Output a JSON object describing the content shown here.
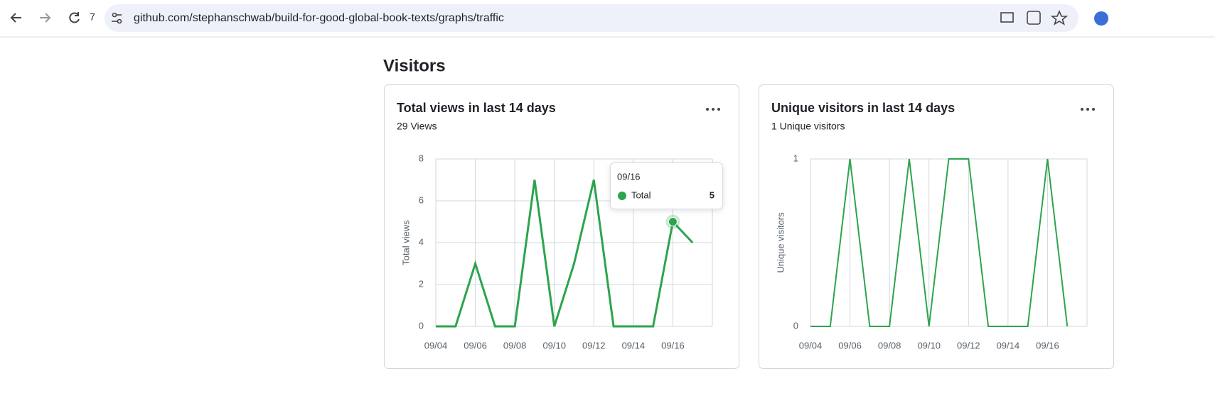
{
  "browser": {
    "tab_count": "7",
    "url": "github.com/stephanschwab/build-for-good-global-book-texts/graphs/traffic"
  },
  "heading": "Visitors",
  "chart_data": [
    {
      "type": "line",
      "title": "Total views in last 14 days",
      "subtitle": "29 Views",
      "y_label": "Total views",
      "categories": [
        "09/04",
        null,
        "09/06",
        null,
        "09/08",
        null,
        "09/10",
        null,
        "09/12",
        null,
        "09/14",
        null,
        "09/16",
        null
      ],
      "series": [
        {
          "name": "Total",
          "color": "#2da44e",
          "values": [
            0,
            0,
            3,
            0,
            0,
            7,
            0,
            3,
            7,
            0,
            0,
            0,
            5,
            4
          ]
        }
      ],
      "ylim": [
        0,
        8
      ],
      "yticks": [
        0,
        2,
        4,
        6,
        8
      ],
      "grid": true,
      "tooltip": {
        "date": "09/16"
      }
    },
    {
      "type": "line",
      "title": "Unique visitors in last 14 days",
      "subtitle": "1 Unique visitors",
      "y_label": "Unique visitors",
      "categories": [
        "09/04",
        null,
        "09/06",
        null,
        "09/08",
        null,
        "09/10",
        null,
        "09/12",
        null,
        "09/14",
        null,
        "09/16",
        null
      ],
      "series": [
        {
          "color": "#2da44e",
          "values": [
            0,
            0,
            1,
            0,
            0,
            1,
            0,
            1,
            1,
            0,
            0,
            0,
            1,
            0
          ]
        }
      ],
      "ylim": [
        0,
        1
      ],
      "yticks": [
        0,
        1
      ],
      "grid": true
    }
  ]
}
